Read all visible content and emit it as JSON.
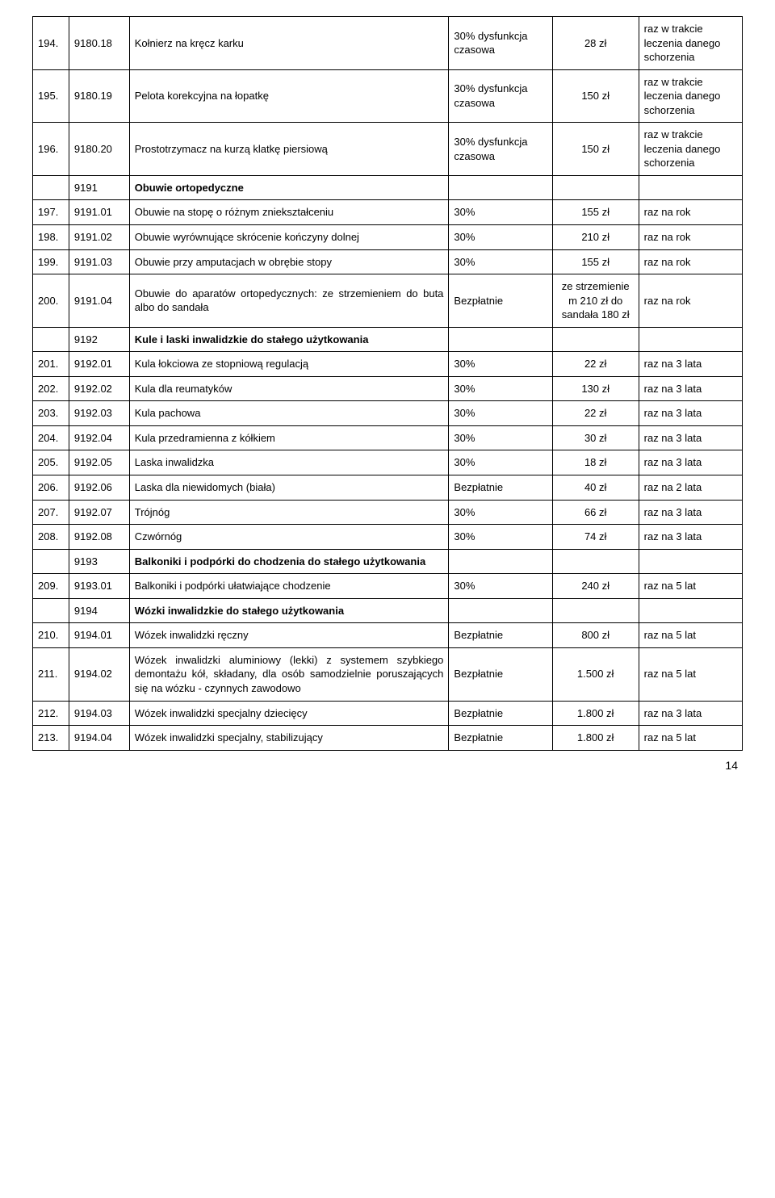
{
  "rows": [
    {
      "idx": "194.",
      "code": "9180.18",
      "desc": "Kołnierz na kręcz karku",
      "pay": "30% dysfunkcja czasowa",
      "limit": "28 zł",
      "freq": "raz w trakcie leczenia danego schorzenia"
    },
    {
      "idx": "195.",
      "code": "9180.19",
      "desc": "Pelota korekcyjna na łopatkę",
      "pay": "30% dysfunkcja czasowa",
      "limit": "150 zł",
      "freq": "raz w trakcie leczenia danego schorzenia"
    },
    {
      "idx": "196.",
      "code": "9180.20",
      "desc": "Prostotrzymacz na kurzą klatkę piersiową",
      "pay": "30% dysfunkcja czasowa",
      "limit": "150 zł",
      "freq": "raz w trakcie leczenia danego schorzenia"
    },
    {
      "section": true,
      "code": "9191",
      "desc": "Obuwie ortopedyczne"
    },
    {
      "idx": "197.",
      "code": "9191.01",
      "desc": "Obuwie na stopę o różnym zniekształceniu",
      "pay": "30%",
      "limit": "155 zł",
      "freq": "raz na rok"
    },
    {
      "idx": "198.",
      "code": "9191.02",
      "desc": "Obuwie wyrównujące skrócenie kończyny dolnej",
      "pay": "30%",
      "limit": "210 zł",
      "freq": "raz na rok"
    },
    {
      "idx": "199.",
      "code": "9191.03",
      "desc": "Obuwie przy amputacjach w obrębie stopy",
      "pay": "30%",
      "limit": "155 zł",
      "freq": "raz na rok"
    },
    {
      "idx": "200.",
      "code": "9191.04",
      "desc": "Obuwie do aparatów ortopedycznych: ze strzemieniem do buta albo do sandała",
      "pay": "Bezpłatnie",
      "limit": "ze strzemienie m 210 zł do sandała 180 zł",
      "freq": "raz na rok"
    },
    {
      "section": true,
      "code": "9192",
      "desc": "Kule i laski inwalidzkie do stałego użytkowania"
    },
    {
      "idx": "201.",
      "code": "9192.01",
      "desc": "Kula łokciowa ze stopniową regulacją",
      "pay": "30%",
      "limit": "22 zł",
      "freq": "raz na 3 lata"
    },
    {
      "idx": "202.",
      "code": "9192.02",
      "desc": "Kula dla reumatyków",
      "pay": "30%",
      "limit": "130 zł",
      "freq": "raz na 3 lata"
    },
    {
      "idx": "203.",
      "code": "9192.03",
      "desc": "Kula pachowa",
      "pay": "30%",
      "limit": "22 zł",
      "freq": "raz na 3 lata"
    },
    {
      "idx": "204.",
      "code": "9192.04",
      "desc": "Kula przedramienna z kółkiem",
      "pay": "30%",
      "limit": "30 zł",
      "freq": "raz na 3 lata"
    },
    {
      "idx": "205.",
      "code": "9192.05",
      "desc": "Laska inwalidzka",
      "pay": "30%",
      "limit": "18 zł",
      "freq": "raz na 3 lata"
    },
    {
      "idx": "206.",
      "code": "9192.06",
      "desc": "Laska dla niewidomych (biała)",
      "pay": "Bezpłatnie",
      "limit": "40 zł",
      "freq": "raz na 2 lata"
    },
    {
      "idx": "207.",
      "code": "9192.07",
      "desc": "Trójnóg",
      "pay": "30%",
      "limit": "66 zł",
      "freq": "raz na 3 lata"
    },
    {
      "idx": "208.",
      "code": "9192.08",
      "desc": "Czwórnóg",
      "pay": "30%",
      "limit": "74 zł",
      "freq": "raz na 3 lata"
    },
    {
      "section": true,
      "code": "9193",
      "desc": "Balkoniki i podpórki do chodzenia do stałego użytkowania"
    },
    {
      "idx": "209.",
      "code": "9193.01",
      "desc": "Balkoniki i podpórki ułatwiające chodzenie",
      "pay": "30%",
      "limit": "240 zł",
      "freq": "raz na 5 lat"
    },
    {
      "section": true,
      "code": "9194",
      "desc": "Wózki inwalidzkie do stałego użytkowania"
    },
    {
      "idx": "210.",
      "code": "9194.01",
      "desc": "Wózek inwalidzki ręczny",
      "pay": "Bezpłatnie",
      "limit": "800 zł",
      "freq": "raz na 5 lat"
    },
    {
      "idx": "211.",
      "code": "9194.02",
      "desc": "Wózek inwalidzki aluminiowy (lekki) z systemem szybkiego demontażu kół, składany, dla osób samodzielnie poruszających się na wózku - czynnych zawodowo",
      "pay": "Bezpłatnie",
      "limit": "1.500 zł",
      "freq": "raz na 5 lat"
    },
    {
      "idx": "212.",
      "code": "9194.03",
      "desc": "Wózek inwalidzki specjalny dziecięcy",
      "pay": "Bezpłatnie",
      "limit": "1.800 zł",
      "freq": "raz na 3 lata"
    },
    {
      "idx": "213.",
      "code": "9194.04",
      "desc": "Wózek inwalidzki specjalny, stabilizujący",
      "pay": "Bezpłatnie",
      "limit": "1.800 zł",
      "freq": "raz na 5 lat"
    }
  ],
  "page_number": "14"
}
